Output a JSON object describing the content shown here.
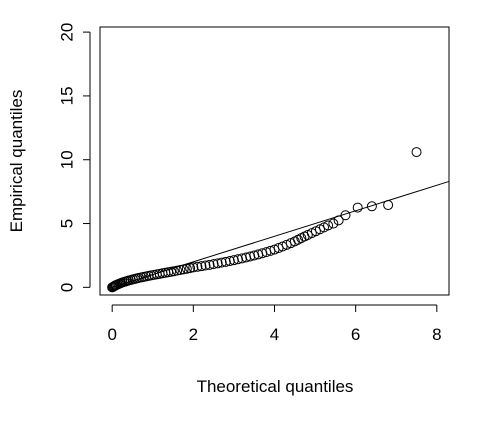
{
  "chart_data": {
    "type": "scatter",
    "title": "",
    "xlabel": "Theoretical quantiles",
    "ylabel": "Empirical quantiles",
    "xlim": [
      -0.3,
      8.3
    ],
    "ylim": [
      -0.6,
      20.4
    ],
    "xticks": [
      0,
      2,
      4,
      6,
      8
    ],
    "yticks": [
      0,
      5,
      10,
      15,
      20
    ],
    "xtick_labels": [
      "0",
      "2",
      "4",
      "6",
      "8"
    ],
    "ytick_labels": [
      "0",
      "5",
      "10",
      "15",
      "20"
    ],
    "grid": false,
    "marker": "open-circle",
    "reference_line": {
      "x": [
        0,
        8.3
      ],
      "y": [
        0,
        8.3
      ]
    },
    "points": [
      [
        0.0,
        0.0
      ],
      [
        0.02,
        0.03
      ],
      [
        0.04,
        0.07
      ],
      [
        0.06,
        0.11
      ],
      [
        0.08,
        0.15
      ],
      [
        0.1,
        0.18
      ],
      [
        0.13,
        0.22
      ],
      [
        0.16,
        0.26
      ],
      [
        0.19,
        0.3
      ],
      [
        0.22,
        0.34
      ],
      [
        0.25,
        0.38
      ],
      [
        0.29,
        0.42
      ],
      [
        0.33,
        0.46
      ],
      [
        0.37,
        0.5
      ],
      [
        0.41,
        0.54
      ],
      [
        0.46,
        0.58
      ],
      [
        0.51,
        0.62
      ],
      [
        0.56,
        0.66
      ],
      [
        0.61,
        0.7
      ],
      [
        0.66,
        0.74
      ],
      [
        0.72,
        0.78
      ],
      [
        0.78,
        0.82
      ],
      [
        0.84,
        0.86
      ],
      [
        0.9,
        0.9
      ],
      [
        0.96,
        0.94
      ],
      [
        1.03,
        0.98
      ],
      [
        1.1,
        1.02
      ],
      [
        1.17,
        1.06
      ],
      [
        1.24,
        1.1
      ],
      [
        1.31,
        1.14
      ],
      [
        1.38,
        1.18
      ],
      [
        1.45,
        1.22
      ],
      [
        1.52,
        1.26
      ],
      [
        1.6,
        1.31
      ],
      [
        1.68,
        1.36
      ],
      [
        1.76,
        1.41
      ],
      [
        1.84,
        1.46
      ],
      [
        1.92,
        1.51
      ],
      [
        2.0,
        1.56
      ],
      [
        2.1,
        1.61
      ],
      [
        2.2,
        1.66
      ],
      [
        2.3,
        1.71
      ],
      [
        2.4,
        1.76
      ],
      [
        2.5,
        1.82
      ],
      [
        2.6,
        1.88
      ],
      [
        2.7,
        1.94
      ],
      [
        2.8,
        2.0
      ],
      [
        2.9,
        2.06
      ],
      [
        3.0,
        2.13
      ],
      [
        3.1,
        2.2
      ],
      [
        3.2,
        2.27
      ],
      [
        3.3,
        2.34
      ],
      [
        3.4,
        2.42
      ],
      [
        3.5,
        2.5
      ],
      [
        3.6,
        2.58
      ],
      [
        3.7,
        2.67
      ],
      [
        3.8,
        2.76
      ],
      [
        3.9,
        2.86
      ],
      [
        4.0,
        2.96
      ],
      [
        4.1,
        3.08
      ],
      [
        4.2,
        3.2
      ],
      [
        4.3,
        3.33
      ],
      [
        4.4,
        3.46
      ],
      [
        4.5,
        3.6
      ],
      [
        4.58,
        3.73
      ],
      [
        4.66,
        3.86
      ],
      [
        4.74,
        3.98
      ],
      [
        4.82,
        4.1
      ],
      [
        4.92,
        4.25
      ],
      [
        5.02,
        4.4
      ],
      [
        5.12,
        4.55
      ],
      [
        5.22,
        4.7
      ],
      [
        5.32,
        4.85
      ],
      [
        5.45,
        5.0
      ],
      [
        5.58,
        5.25
      ],
      [
        5.75,
        5.65
      ],
      [
        6.05,
        6.25
      ],
      [
        6.4,
        6.35
      ],
      [
        6.8,
        6.45
      ],
      [
        7.5,
        10.6
      ]
    ]
  }
}
